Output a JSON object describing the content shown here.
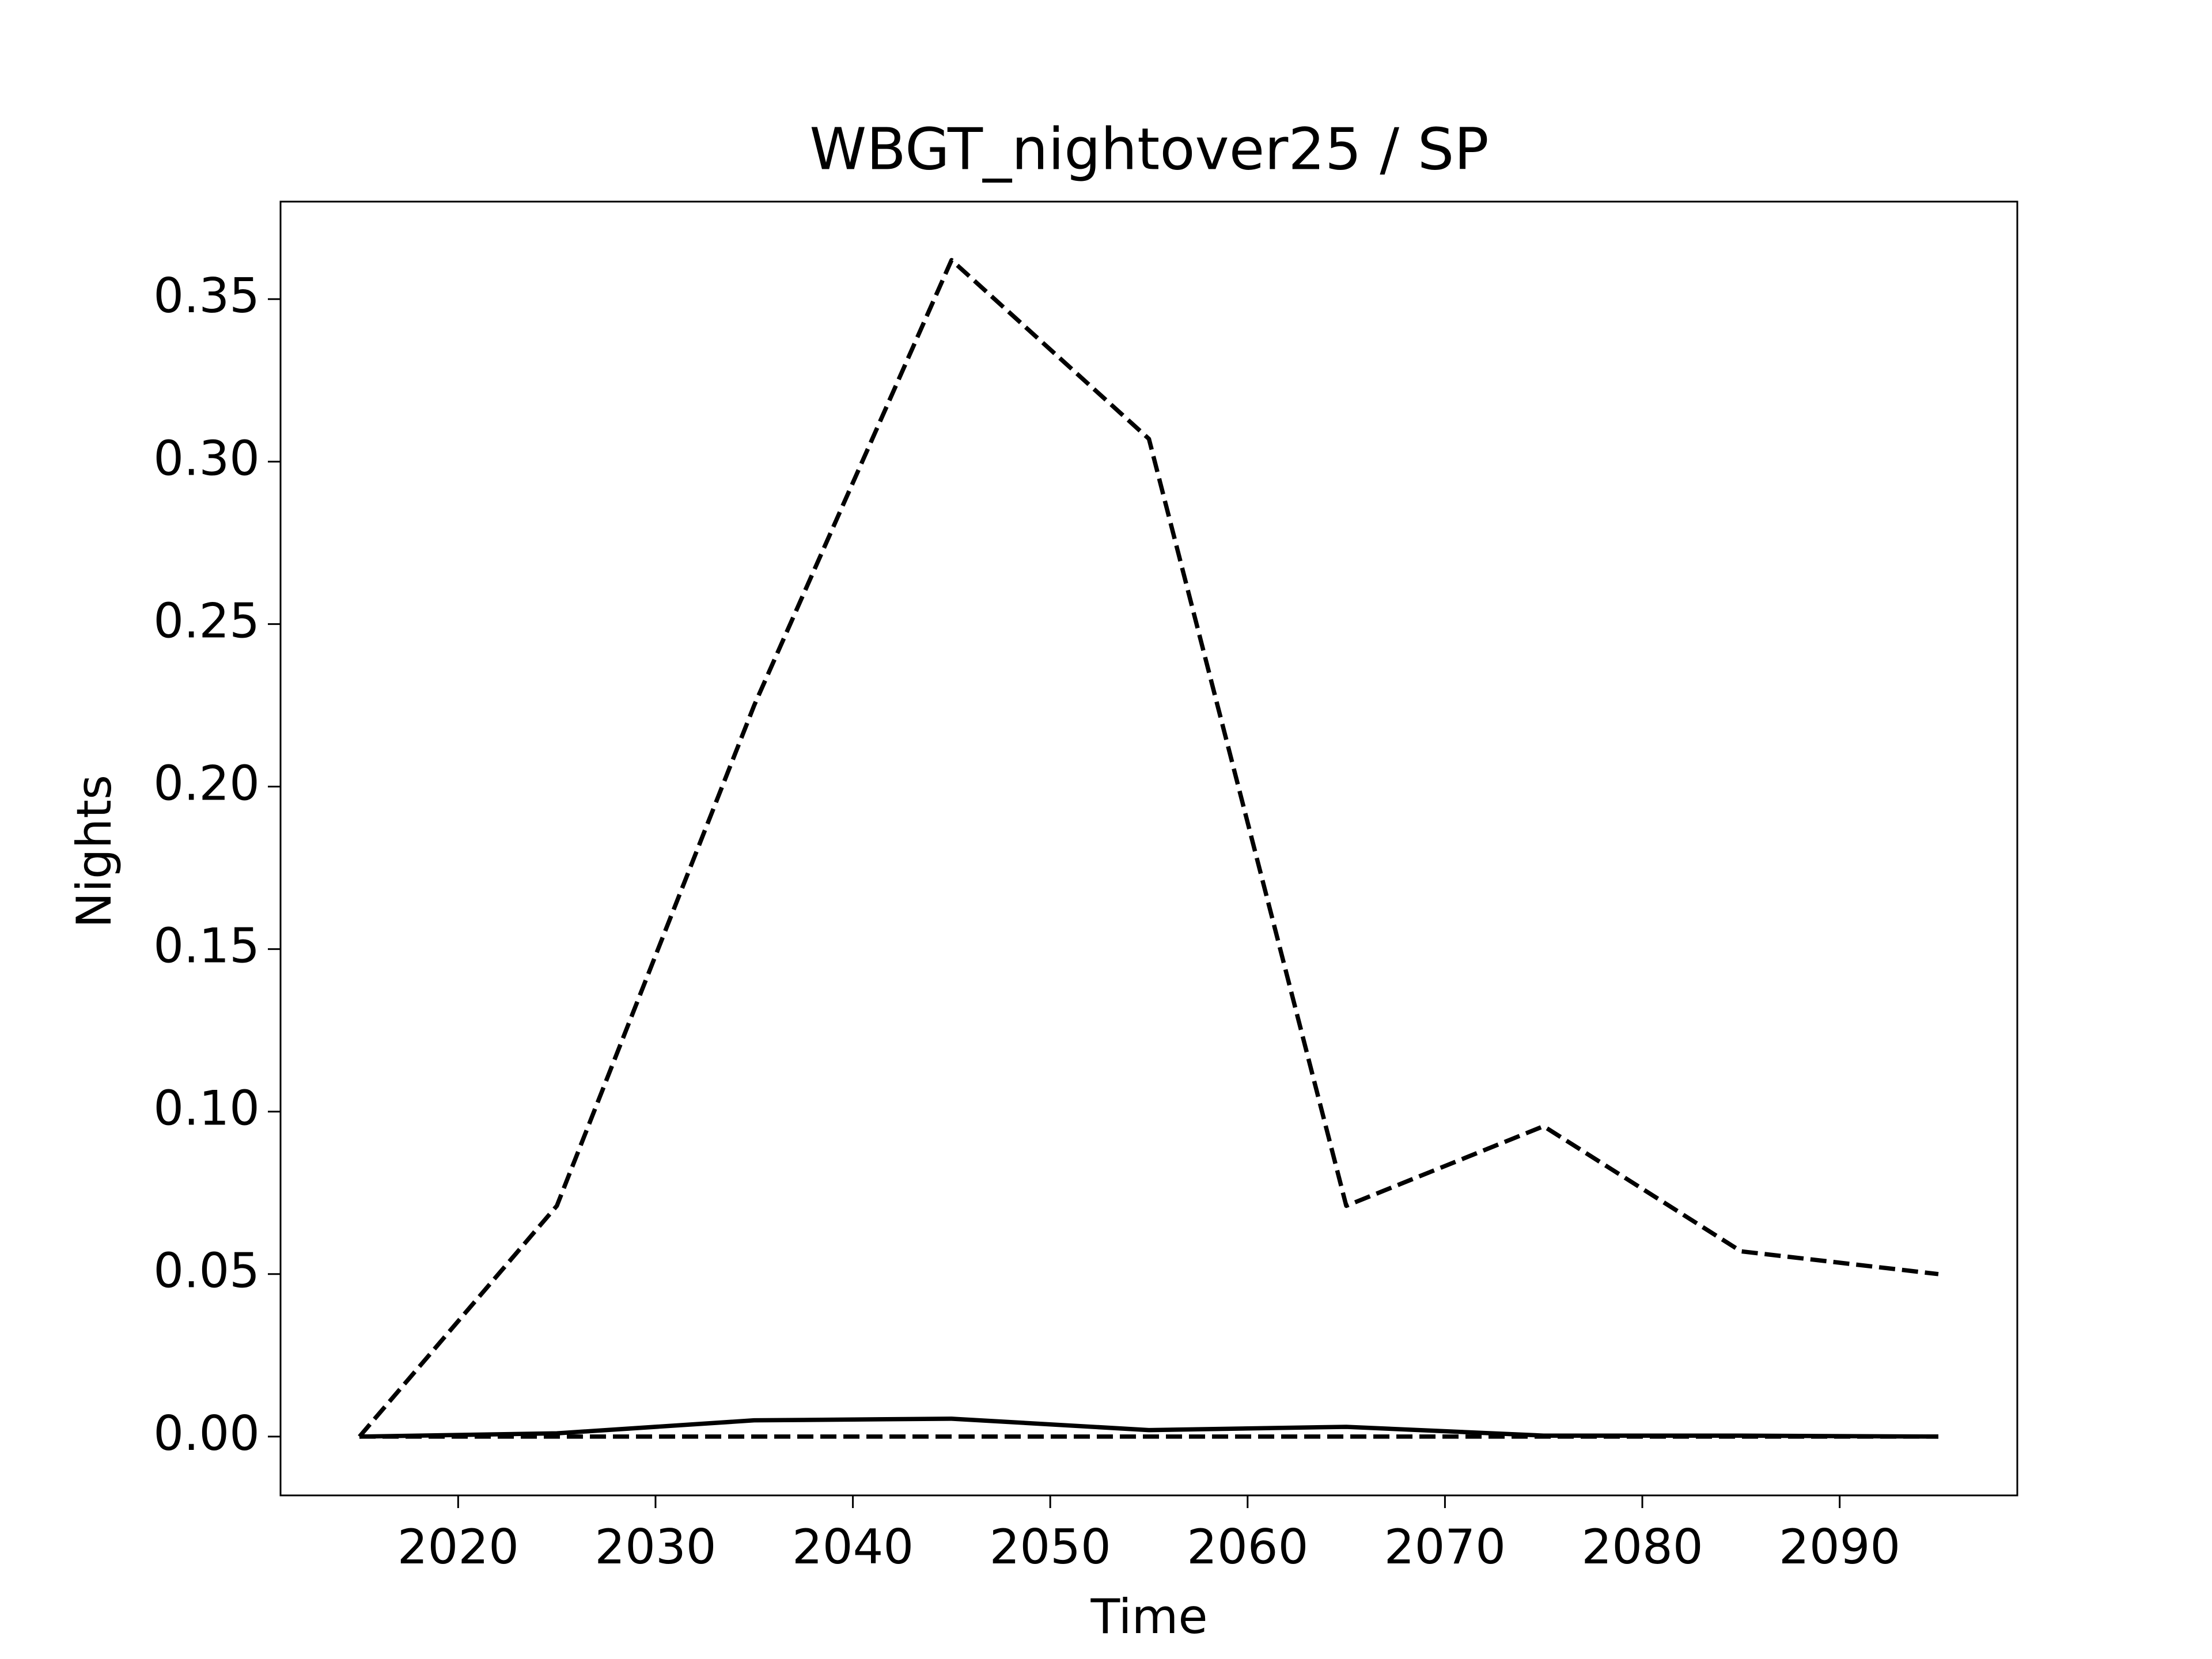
{
  "chart_data": {
    "type": "line",
    "title": "WBGT_nightover25 / SP",
    "x_label": "Time",
    "y_label": "Nights",
    "x": [
      2015,
      2025,
      2035,
      2045,
      2055,
      2065,
      2075,
      2085,
      2095
    ],
    "series": [
      {
        "color": "#000000",
        "linestyle": "dashed",
        "values": [
          0,
          0.071,
          0.225,
          0.362,
          0.307,
          0.071,
          0.0955,
          0.057,
          0.05
        ]
      },
      {
        "color": "#000000",
        "linestyle": "solid",
        "values": [
          0,
          0.001,
          0.005,
          0.0055,
          0.002,
          0.003,
          0.0003,
          0.0003,
          0
        ]
      },
      {
        "color": "#000000",
        "linestyle": "dashed",
        "values": [
          0,
          0,
          0,
          0,
          0,
          0,
          0,
          0,
          0
        ]
      }
    ],
    "xlim": [
      2011,
      2099
    ],
    "xticks": [
      2020,
      2030,
      2040,
      2050,
      2060,
      2070,
      2080,
      2090
    ],
    "ylim": [
      -0.0181,
      0.38
    ],
    "yticks": [
      {
        "value": 0,
        "label": "0.00"
      },
      {
        "value": 0.05,
        "label": "0.05"
      },
      {
        "value": 0.1,
        "label": "0.10"
      },
      {
        "value": 0.15,
        "label": "0.15"
      },
      {
        "value": 0.2,
        "label": "0.20"
      },
      {
        "value": 0.25,
        "label": "0.25"
      },
      {
        "value": 0.3,
        "label": "0.30"
      },
      {
        "value": 0.35,
        "label": "0.35"
      }
    ],
    "grid": false
  }
}
